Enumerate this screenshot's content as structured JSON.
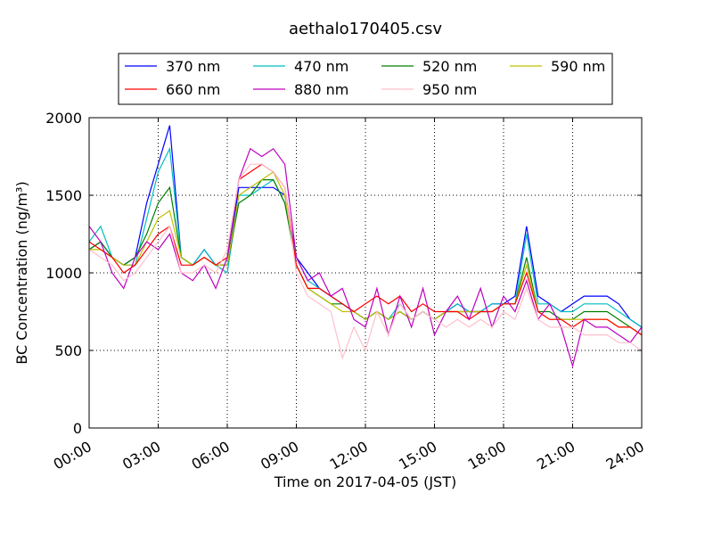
{
  "chart_data": {
    "type": "line",
    "title": "aethalo170405.csv",
    "x_label": "Time on 2017-04-05 (JST)",
    "y_label": "BC Concentration (ng/m³)",
    "x": [
      0,
      0.5,
      1,
      1.5,
      2,
      2.5,
      3,
      3.5,
      4,
      4.5,
      5,
      5.5,
      6,
      6.5,
      7,
      7.5,
      8,
      8.5,
      9,
      9.5,
      10,
      10.5,
      11,
      11.5,
      12,
      12.5,
      13,
      13.5,
      14,
      14.5,
      15,
      15.5,
      16,
      16.5,
      17,
      17.5,
      18,
      18.5,
      19,
      19.5,
      20,
      20.5,
      21,
      21.5,
      22,
      22.5,
      23,
      23.5,
      24
    ],
    "xlim": [
      0,
      24
    ],
    "xticks": [
      {
        "value": 0,
        "label": "00:00"
      },
      {
        "value": 3,
        "label": "03:00"
      },
      {
        "value": 6,
        "label": "06:00"
      },
      {
        "value": 9,
        "label": "09:00"
      },
      {
        "value": 12,
        "label": "12:00"
      },
      {
        "value": 15,
        "label": "15:00"
      },
      {
        "value": 18,
        "label": "18:00"
      },
      {
        "value": 21,
        "label": "21:00"
      },
      {
        "value": 24,
        "label": "24:00"
      }
    ],
    "ylim": [
      0,
      2000
    ],
    "yticks": [
      0,
      500,
      1000,
      1500,
      2000
    ],
    "grid": true,
    "series": [
      {
        "name": "370 nm",
        "color": "#0000ff",
        "values": [
          1150,
          1200,
          1100,
          1050,
          1100,
          1450,
          1700,
          1950,
          1100,
          1050,
          1150,
          1050,
          1050,
          1550,
          1550,
          1550,
          1550,
          1500,
          1100,
          1000,
          900,
          850,
          800,
          750,
          700,
          750,
          700,
          750,
          700,
          750,
          700,
          750,
          800,
          750,
          750,
          800,
          800,
          850,
          1300,
          850,
          800,
          750,
          800,
          850,
          850,
          850,
          800,
          700,
          650
        ]
      },
      {
        "name": "470 nm",
        "color": "#00bfbf",
        "values": [
          1200,
          1300,
          1100,
          1050,
          1050,
          1350,
          1650,
          1800,
          1100,
          1050,
          1150,
          1050,
          1000,
          1500,
          1500,
          1550,
          1600,
          1450,
          1100,
          950,
          900,
          850,
          800,
          750,
          700,
          750,
          700,
          800,
          700,
          750,
          700,
          750,
          800,
          750,
          750,
          800,
          800,
          800,
          1250,
          800,
          800,
          750,
          750,
          800,
          800,
          800,
          750,
          700,
          650
        ]
      },
      {
        "name": "520 nm",
        "color": "#008000",
        "values": [
          1150,
          1200,
          1100,
          1050,
          1100,
          1250,
          1450,
          1550,
          1100,
          1050,
          1100,
          1050,
          1050,
          1450,
          1500,
          1600,
          1600,
          1450,
          1050,
          900,
          850,
          800,
          800,
          750,
          700,
          750,
          700,
          750,
          700,
          750,
          700,
          750,
          750,
          750,
          750,
          750,
          800,
          800,
          1100,
          750,
          750,
          700,
          700,
          750,
          750,
          750,
          700,
          650,
          600
        ]
      },
      {
        "name": "590 nm",
        "color": "#bfbf00",
        "values": [
          1150,
          1150,
          1100,
          1050,
          1050,
          1200,
          1350,
          1400,
          1100,
          1050,
          1100,
          1050,
          1050,
          1500,
          1550,
          1600,
          1650,
          1500,
          1050,
          900,
          850,
          800,
          750,
          750,
          700,
          750,
          700,
          750,
          700,
          750,
          700,
          750,
          750,
          750,
          750,
          750,
          800,
          800,
          1050,
          750,
          700,
          700,
          700,
          700,
          700,
          700,
          650,
          650,
          600
        ]
      },
      {
        "name": "660 nm",
        "color": "#ff0000",
        "values": [
          1200,
          1150,
          1100,
          1000,
          1050,
          1150,
          1250,
          1300,
          1050,
          1050,
          1100,
          1050,
          1100,
          1600,
          1650,
          1700,
          1650,
          1550,
          1050,
          900,
          900,
          850,
          800,
          750,
          800,
          850,
          800,
          850,
          750,
          800,
          750,
          750,
          750,
          700,
          750,
          750,
          800,
          800,
          1000,
          750,
          700,
          700,
          650,
          700,
          700,
          700,
          650,
          650,
          600
        ]
      },
      {
        "name": "880 nm",
        "color": "#bf00bf",
        "values": [
          1300,
          1200,
          1000,
          900,
          1100,
          1200,
          1150,
          1250,
          1000,
          950,
          1050,
          900,
          1100,
          1600,
          1800,
          1750,
          1800,
          1700,
          1100,
          950,
          1000,
          850,
          900,
          700,
          650,
          900,
          600,
          850,
          650,
          900,
          600,
          750,
          850,
          700,
          900,
          650,
          850,
          750,
          950,
          700,
          800,
          650,
          400,
          700,
          650,
          650,
          600,
          550,
          650
        ]
      },
      {
        "name": "950 nm",
        "color": "#ffc0cb",
        "values": [
          1150,
          1100,
          1050,
          950,
          1000,
          1100,
          1200,
          1300,
          1000,
          1000,
          1050,
          1000,
          1150,
          1600,
          1700,
          1700,
          1650,
          1550,
          1000,
          850,
          800,
          750,
          450,
          650,
          500,
          750,
          600,
          800,
          700,
          750,
          700,
          650,
          700,
          650,
          700,
          650,
          750,
          700,
          900,
          700,
          650,
          650,
          650,
          600,
          600,
          600,
          550,
          550,
          500
        ]
      }
    ]
  }
}
